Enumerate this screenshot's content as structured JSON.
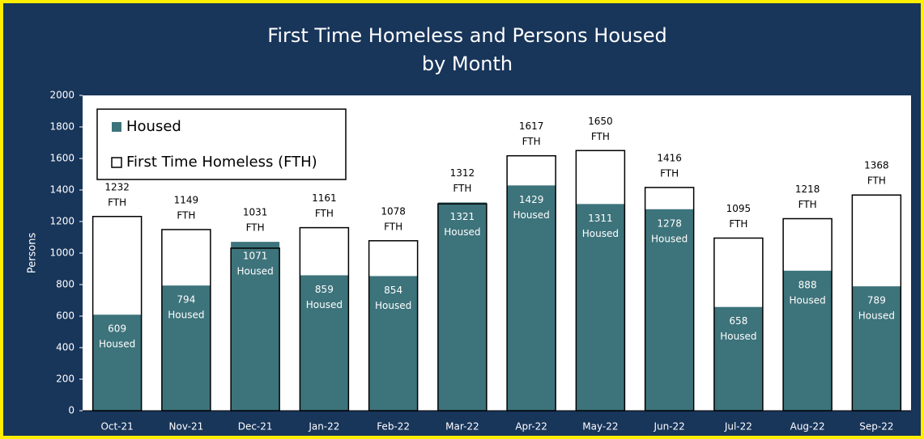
{
  "chart_data": {
    "type": "overlapping-bar",
    "title": [
      "First Time Homeless and Persons Housed",
      "by Month"
    ],
    "y_label": "Persons",
    "categories": [
      "Oct-21",
      "Nov-21",
      "Dec-21",
      "Jan-22",
      "Feb-22",
      "Mar-22",
      "Apr-22",
      "May-22",
      "Jun-22",
      "Jul-22",
      "Aug-22",
      "Sep-22"
    ],
    "series": [
      {
        "name": "Housed",
        "color": "#3d737b",
        "value_label_unit": "Housed",
        "values": [
          609,
          794,
          1071,
          859,
          854,
          1321,
          1429,
          1311,
          1278,
          658,
          888,
          789
        ]
      },
      {
        "name": "First Time Homeless (FTH)",
        "color": "#ffffff",
        "value_label_unit": "FTH",
        "values": [
          1232,
          1149,
          1031,
          1161,
          1078,
          1312,
          1617,
          1650,
          1416,
          1095,
          1218,
          1368
        ]
      }
    ],
    "ylim": [
      0,
      2000
    ],
    "yticks": [
      0,
      200,
      400,
      600,
      800,
      1000,
      1200,
      1400,
      1600,
      1800,
      2000
    ],
    "legend": "top-left"
  }
}
